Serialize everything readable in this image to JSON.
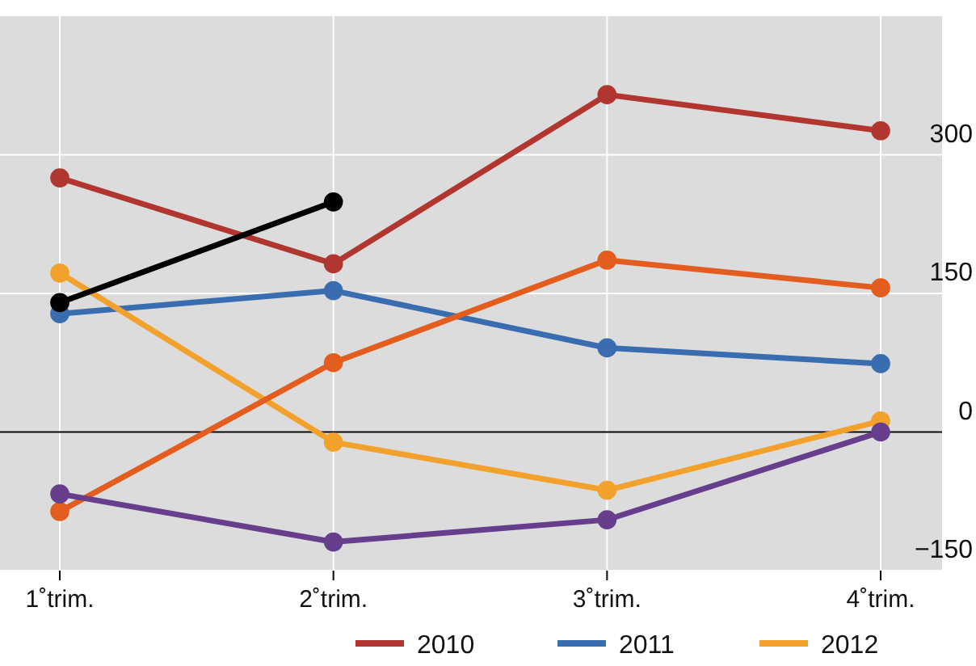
{
  "chart_data": {
    "type": "line",
    "categories": [
      "1˚trim.",
      "2˚trim.",
      "3˚trim.",
      "4˚trim."
    ],
    "series": [
      {
        "name": "2010",
        "color": "#b0362f",
        "values": [
          275,
          182,
          365,
          326
        ]
      },
      {
        "name": "2011",
        "color": "#3a6db0",
        "values": [
          128,
          153,
          91,
          74
        ]
      },
      {
        "name": "2012",
        "color": "#f2a22c",
        "values": [
          172,
          -11,
          -63,
          12
        ]
      },
      {
        "color": "#e35d1f",
        "values": [
          -86,
          75,
          186,
          156
        ]
      },
      {
        "color": "#673e8c",
        "values": [
          -67,
          -119,
          -95,
          0
        ]
      },
      {
        "color": "#000000",
        "values": [
          140,
          249,
          null,
          null
        ]
      }
    ],
    "ylim": [
      -150,
      450
    ],
    "yticks": [
      -150,
      0,
      150,
      300
    ],
    "grid": true,
    "legend": "bottom",
    "marker": "circle",
    "line_style": "solid",
    "ref_lines": [
      {
        "axis": "y",
        "value": 0,
        "color": "#000000"
      }
    ]
  }
}
